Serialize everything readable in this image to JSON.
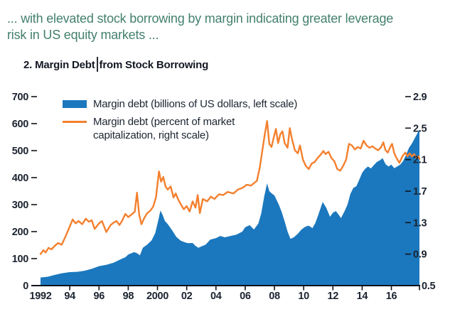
{
  "headline": {
    "line1": "... with elevated stock borrowing by margin indicating greater leverage",
    "line2": "risk in US equity markets ..."
  },
  "figure": {
    "title_left": "2. Margin Debt",
    "title_right": "from Stock Borrowing",
    "text_cursor_visible": true
  },
  "chart_data": {
    "type": "combo",
    "title": "2. Margin Debt from Stock Borrowing",
    "grid": false,
    "legend_position": "top-left-inside",
    "x_axis": {
      "range": [
        1992,
        2018.05
      ],
      "tick_years": [
        1994,
        1996,
        1998,
        2000,
        2002,
        2004,
        2006,
        2008,
        2010,
        2012,
        2014,
        2016,
        2018
      ],
      "label_years": [
        1992,
        1994,
        1996,
        1998,
        2000,
        2002,
        2004,
        2006,
        2008,
        2010,
        2012,
        2014,
        2016
      ],
      "labels": [
        "1992",
        "94",
        "96",
        "98",
        "2000",
        "02",
        "04",
        "06",
        "08",
        "10",
        "12",
        "14",
        "16"
      ]
    },
    "y_left": {
      "min": 0,
      "max": 700,
      "ticks": [
        700,
        600,
        500,
        400,
        300,
        200,
        100,
        0
      ]
    },
    "y_right": {
      "min": 0.5,
      "max": 2.9,
      "ticks": [
        2.9,
        2.5,
        2.1,
        1.7,
        1.3,
        0.9,
        0.5
      ]
    },
    "legend": [
      {
        "label": "Margin debt (billions of US dollars, left scale)",
        "color": "#1b78be",
        "type": "area"
      },
      {
        "label": "Margin debt (percent of market capitalization, right scale)",
        "color": "#f4802e",
        "type": "line"
      }
    ],
    "series": [
      {
        "name": "Margin debt (billions of US dollars)",
        "type": "area",
        "axis": "left",
        "color": "#1b78be",
        "points": [
          [
            1992.0,
            30
          ],
          [
            1992.5,
            33
          ],
          [
            1993.0,
            40
          ],
          [
            1993.5,
            46
          ],
          [
            1994.0,
            50
          ],
          [
            1994.5,
            51
          ],
          [
            1995.0,
            55
          ],
          [
            1995.5,
            62
          ],
          [
            1996.0,
            72
          ],
          [
            1996.5,
            77
          ],
          [
            1997.0,
            85
          ],
          [
            1997.5,
            98
          ],
          [
            1997.8,
            105
          ],
          [
            1998.0,
            115
          ],
          [
            1998.4,
            124
          ],
          [
            1998.6,
            120
          ],
          [
            1998.8,
            112
          ],
          [
            1999.0,
            140
          ],
          [
            1999.3,
            152
          ],
          [
            1999.6,
            168
          ],
          [
            1999.85,
            195
          ],
          [
            2000.05,
            240
          ],
          [
            2000.2,
            278
          ],
          [
            2000.35,
            262
          ],
          [
            2000.5,
            240
          ],
          [
            2000.7,
            228
          ],
          [
            2001.0,
            205
          ],
          [
            2001.3,
            180
          ],
          [
            2001.6,
            166
          ],
          [
            2001.9,
            160
          ],
          [
            2002.1,
            157
          ],
          [
            2002.4,
            158
          ],
          [
            2002.6,
            147
          ],
          [
            2002.8,
            140
          ],
          [
            2003.0,
            145
          ],
          [
            2003.3,
            152
          ],
          [
            2003.6,
            170
          ],
          [
            2004.0,
            176
          ],
          [
            2004.3,
            184
          ],
          [
            2004.6,
            179
          ],
          [
            2005.0,
            184
          ],
          [
            2005.4,
            189
          ],
          [
            2005.8,
            200
          ],
          [
            2006.0,
            216
          ],
          [
            2006.3,
            224
          ],
          [
            2006.6,
            208
          ],
          [
            2006.9,
            230
          ],
          [
            2007.1,
            268
          ],
          [
            2007.3,
            330
          ],
          [
            2007.5,
            379
          ],
          [
            2007.65,
            350
          ],
          [
            2007.8,
            342
          ],
          [
            2008.0,
            334
          ],
          [
            2008.3,
            300
          ],
          [
            2008.5,
            272
          ],
          [
            2008.7,
            238
          ],
          [
            2008.9,
            200
          ],
          [
            2009.1,
            173
          ],
          [
            2009.35,
            180
          ],
          [
            2009.6,
            192
          ],
          [
            2009.85,
            208
          ],
          [
            2010.1,
            218
          ],
          [
            2010.35,
            222
          ],
          [
            2010.6,
            213
          ],
          [
            2010.8,
            232
          ],
          [
            2011.0,
            262
          ],
          [
            2011.3,
            310
          ],
          [
            2011.55,
            288
          ],
          [
            2011.8,
            255
          ],
          [
            2012.0,
            270
          ],
          [
            2012.2,
            276
          ],
          [
            2012.4,
            262
          ],
          [
            2012.55,
            250
          ],
          [
            2012.8,
            276
          ],
          [
            2013.0,
            300
          ],
          [
            2013.2,
            340
          ],
          [
            2013.4,
            362
          ],
          [
            2013.6,
            368
          ],
          [
            2013.8,
            392
          ],
          [
            2014.0,
            418
          ],
          [
            2014.2,
            432
          ],
          [
            2014.4,
            441
          ],
          [
            2014.6,
            434
          ],
          [
            2014.8,
            446
          ],
          [
            2015.0,
            458
          ],
          [
            2015.2,
            464
          ],
          [
            2015.4,
            472
          ],
          [
            2015.6,
            450
          ],
          [
            2015.8,
            441
          ],
          [
            2016.0,
            448
          ],
          [
            2016.2,
            435
          ],
          [
            2016.4,
            441
          ],
          [
            2016.6,
            448
          ],
          [
            2016.8,
            461
          ],
          [
            2017.0,
            484
          ],
          [
            2017.2,
            510
          ],
          [
            2017.4,
            526
          ],
          [
            2017.6,
            546
          ],
          [
            2017.8,
            566
          ],
          [
            2017.92,
            578
          ]
        ]
      },
      {
        "name": "Margin debt (percent of market capitalization)",
        "type": "line",
        "axis": "right",
        "color": "#f4802e",
        "points": [
          [
            1992.0,
            0.9
          ],
          [
            1992.2,
            0.95
          ],
          [
            1992.35,
            0.92
          ],
          [
            1992.55,
            0.98
          ],
          [
            1992.75,
            0.96
          ],
          [
            1993.0,
            1.01
          ],
          [
            1993.2,
            1.04
          ],
          [
            1993.45,
            1.02
          ],
          [
            1993.7,
            1.12
          ],
          [
            1994.0,
            1.25
          ],
          [
            1994.2,
            1.34
          ],
          [
            1994.4,
            1.29
          ],
          [
            1994.6,
            1.32
          ],
          [
            1994.85,
            1.28
          ],
          [
            1995.1,
            1.35
          ],
          [
            1995.3,
            1.31
          ],
          [
            1995.5,
            1.33
          ],
          [
            1995.7,
            1.22
          ],
          [
            1996.0,
            1.29
          ],
          [
            1996.2,
            1.32
          ],
          [
            1996.5,
            1.18
          ],
          [
            1996.8,
            1.27
          ],
          [
            1997.0,
            1.3
          ],
          [
            1997.2,
            1.32
          ],
          [
            1997.4,
            1.27
          ],
          [
            1997.6,
            1.33
          ],
          [
            1997.8,
            1.41
          ],
          [
            1998.0,
            1.37
          ],
          [
            1998.2,
            1.4
          ],
          [
            1998.45,
            1.44
          ],
          [
            1998.6,
            1.68
          ],
          [
            1998.75,
            1.4
          ],
          [
            1998.9,
            1.28
          ],
          [
            1999.1,
            1.36
          ],
          [
            1999.3,
            1.42
          ],
          [
            1999.5,
            1.45
          ],
          [
            1999.7,
            1.5
          ],
          [
            1999.9,
            1.62
          ],
          [
            2000.1,
            1.95
          ],
          [
            2000.25,
            1.82
          ],
          [
            2000.4,
            1.88
          ],
          [
            2000.55,
            1.76
          ],
          [
            2000.7,
            1.72
          ],
          [
            2000.9,
            1.76
          ],
          [
            2001.1,
            1.62
          ],
          [
            2001.25,
            1.67
          ],
          [
            2001.4,
            1.6
          ],
          [
            2001.6,
            1.53
          ],
          [
            2001.8,
            1.47
          ],
          [
            2002.0,
            1.51
          ],
          [
            2002.2,
            1.44
          ],
          [
            2002.4,
            1.57
          ],
          [
            2002.6,
            1.49
          ],
          [
            2002.75,
            1.65
          ],
          [
            2002.9,
            1.42
          ],
          [
            2003.1,
            1.6
          ],
          [
            2003.4,
            1.57
          ],
          [
            2003.65,
            1.63
          ],
          [
            2003.9,
            1.6
          ],
          [
            2004.2,
            1.66
          ],
          [
            2004.5,
            1.65
          ],
          [
            2004.8,
            1.69
          ],
          [
            2005.2,
            1.67
          ],
          [
            2005.5,
            1.72
          ],
          [
            2005.8,
            1.74
          ],
          [
            2006.1,
            1.78
          ],
          [
            2006.4,
            1.77
          ],
          [
            2006.8,
            1.83
          ],
          [
            2007.0,
            2.0
          ],
          [
            2007.2,
            2.25
          ],
          [
            2007.35,
            2.43
          ],
          [
            2007.5,
            2.59
          ],
          [
            2007.65,
            2.3
          ],
          [
            2007.8,
            2.26
          ],
          [
            2007.95,
            2.38
          ],
          [
            2008.1,
            2.49
          ],
          [
            2008.25,
            2.31
          ],
          [
            2008.4,
            2.42
          ],
          [
            2008.55,
            2.46
          ],
          [
            2008.7,
            2.31
          ],
          [
            2008.9,
            2.25
          ],
          [
            2009.05,
            2.5
          ],
          [
            2009.2,
            2.36
          ],
          [
            2009.4,
            2.22
          ],
          [
            2009.6,
            2.18
          ],
          [
            2009.75,
            2.28
          ],
          [
            2009.95,
            2.1
          ],
          [
            2010.15,
            2.02
          ],
          [
            2010.35,
            1.98
          ],
          [
            2010.55,
            2.05
          ],
          [
            2010.75,
            2.07
          ],
          [
            2010.95,
            2.12
          ],
          [
            2011.15,
            2.16
          ],
          [
            2011.35,
            2.21
          ],
          [
            2011.5,
            2.17
          ],
          [
            2011.7,
            2.2
          ],
          [
            2011.9,
            2.12
          ],
          [
            2012.1,
            2.08
          ],
          [
            2012.3,
            1.98
          ],
          [
            2012.5,
            1.96
          ],
          [
            2012.7,
            2.02
          ],
          [
            2012.9,
            2.1
          ],
          [
            2013.1,
            2.3
          ],
          [
            2013.3,
            2.28
          ],
          [
            2013.5,
            2.23
          ],
          [
            2013.7,
            2.26
          ],
          [
            2013.9,
            2.24
          ],
          [
            2014.1,
            2.34
          ],
          [
            2014.3,
            2.28
          ],
          [
            2014.5,
            2.25
          ],
          [
            2014.7,
            2.27
          ],
          [
            2014.9,
            2.24
          ],
          [
            2015.1,
            2.22
          ],
          [
            2015.3,
            2.26
          ],
          [
            2015.45,
            2.32
          ],
          [
            2015.6,
            2.22
          ],
          [
            2015.75,
            2.19
          ],
          [
            2015.95,
            2.27
          ],
          [
            2016.05,
            2.3
          ],
          [
            2016.2,
            2.18
          ],
          [
            2016.35,
            2.12
          ],
          [
            2016.55,
            2.06
          ],
          [
            2016.75,
            2.14
          ],
          [
            2016.95,
            2.19
          ],
          [
            2017.1,
            2.14
          ],
          [
            2017.25,
            2.18
          ],
          [
            2017.4,
            2.14
          ],
          [
            2017.55,
            2.17
          ],
          [
            2017.7,
            2.13
          ],
          [
            2017.85,
            2.14
          ],
          [
            2017.92,
            2.11
          ]
        ]
      }
    ]
  }
}
